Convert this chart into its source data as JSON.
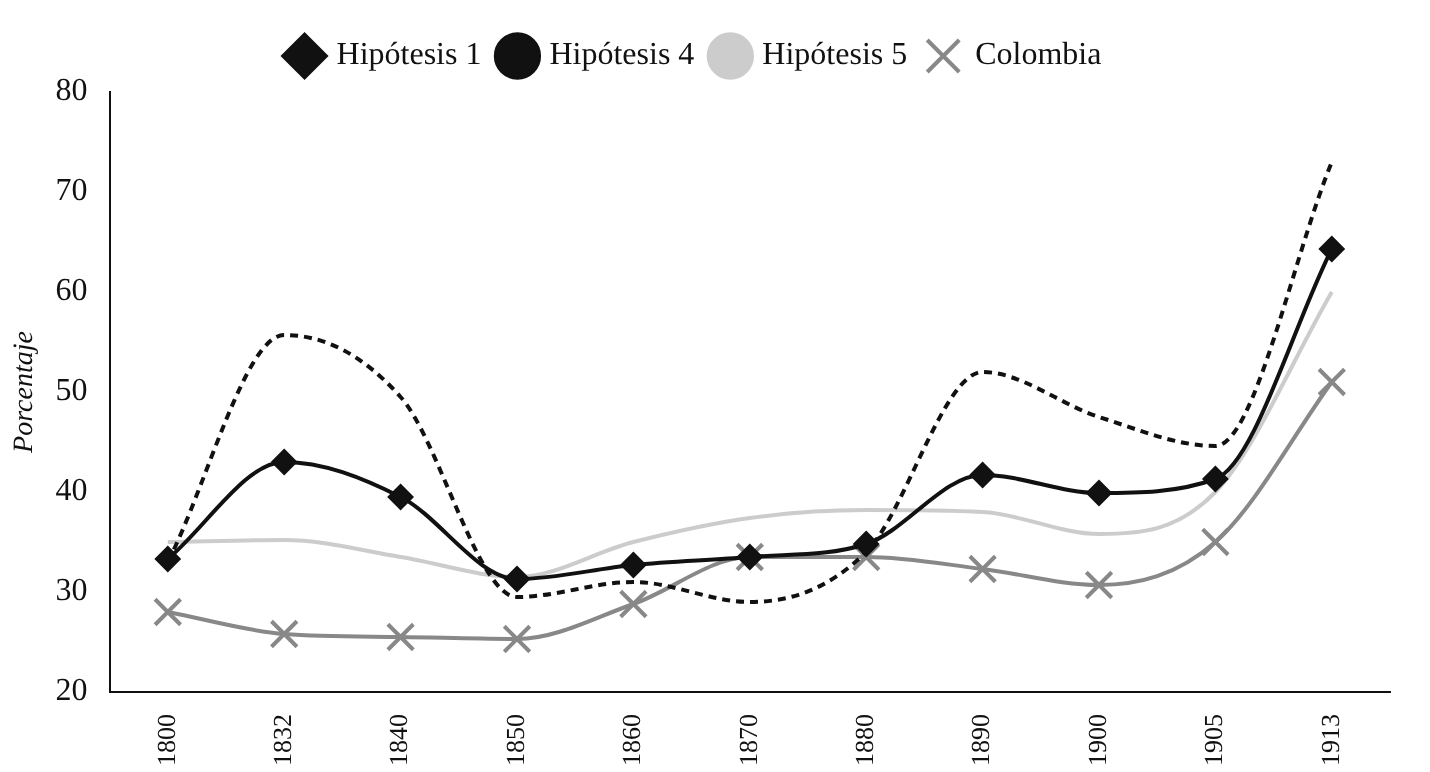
{
  "chart_data": {
    "type": "line",
    "ylabel": "Porcentaje",
    "categories": [
      "1800",
      "1832",
      "1840",
      "1850",
      "1860",
      "1870",
      "1880",
      "1890",
      "1900",
      "1905",
      "1913"
    ],
    "ylim": [
      20,
      80
    ],
    "yticks": [
      20,
      30,
      40,
      50,
      60,
      70,
      80
    ],
    "grid": false,
    "legend": "top",
    "series": [
      {
        "name": "Hipótesis 1",
        "color": "#111111",
        "marker": "diamond",
        "line_style": "solid",
        "values": [
          33.3,
          43,
          39.5,
          31.3,
          32.7,
          33.5,
          34.8,
          41.7,
          39.9,
          41.3,
          64.3
        ]
      },
      {
        "name": "Hipótesis 4",
        "color": "#111111",
        "marker": "none",
        "line_style": "dashed",
        "values": [
          33,
          55.7,
          49.5,
          29.5,
          31,
          29,
          34,
          52,
          47.5,
          44.6,
          73
        ]
      },
      {
        "name": "Hipótesis 5",
        "color": "#cccccc",
        "marker": "none",
        "line_style": "solid",
        "values": [
          35,
          35.2,
          33.5,
          31.5,
          35,
          37.4,
          38.2,
          38,
          35.8,
          40,
          60
        ]
      },
      {
        "name": "Colombia",
        "color": "#888888",
        "marker": "cross",
        "line_style": "solid",
        "values": [
          28,
          25.8,
          25.5,
          25.3,
          28.8,
          33.5,
          33.5,
          32.3,
          30.7,
          35,
          51
        ]
      }
    ]
  }
}
